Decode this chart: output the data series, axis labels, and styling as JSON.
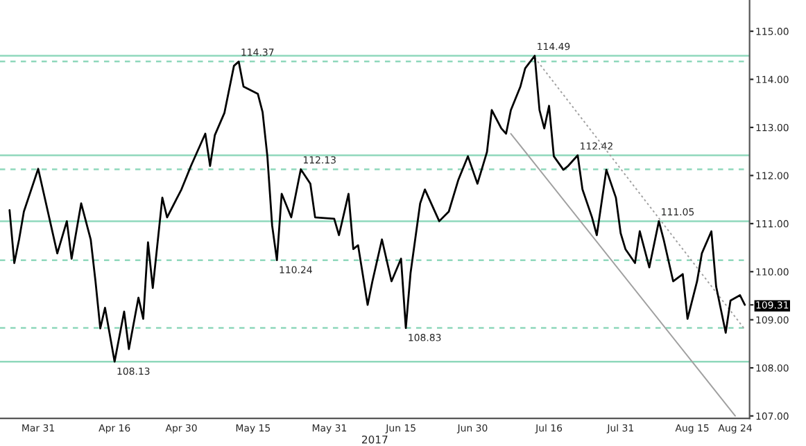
{
  "chart_data": {
    "type": "line",
    "xlabel": "2017",
    "series": [
      {
        "color": "#000000",
        "line_style": "solid",
        "x": [
          "2017-03-25",
          "2017-03-26",
          "2017-03-27",
          "2017-03-28",
          "2017-03-31",
          "2017-04-04",
          "2017-04-06",
          "2017-04-07",
          "2017-04-09",
          "2017-04-11",
          "2017-04-12",
          "2017-04-13",
          "2017-04-14",
          "2017-04-16",
          "2017-04-18",
          "2017-04-19",
          "2017-04-21",
          "2017-04-22",
          "2017-04-23",
          "2017-04-24",
          "2017-04-26",
          "2017-04-27",
          "2017-04-30",
          "2017-05-02",
          "2017-05-05",
          "2017-05-06",
          "2017-05-07",
          "2017-05-09",
          "2017-05-11",
          "2017-05-12",
          "2017-05-13",
          "2017-05-16",
          "2017-05-17",
          "2017-05-18",
          "2017-05-19",
          "2017-05-20",
          "2017-05-21",
          "2017-05-23",
          "2017-05-25",
          "2017-05-27",
          "2017-05-28",
          "2017-06-01",
          "2017-06-02",
          "2017-06-04",
          "2017-06-05",
          "2017-06-06",
          "2017-06-08",
          "2017-06-09",
          "2017-06-11",
          "2017-06-13",
          "2017-06-15",
          "2017-06-16",
          "2017-06-17",
          "2017-06-19",
          "2017-06-20",
          "2017-06-23",
          "2017-06-25",
          "2017-06-27",
          "2017-06-29",
          "2017-07-01",
          "2017-07-03",
          "2017-07-04",
          "2017-07-06",
          "2017-07-07",
          "2017-07-08",
          "2017-07-10",
          "2017-07-11",
          "2017-07-13",
          "2017-07-14",
          "2017-07-15",
          "2017-07-16",
          "2017-07-17",
          "2017-07-19",
          "2017-07-20",
          "2017-07-22",
          "2017-07-23",
          "2017-07-25",
          "2017-07-26",
          "2017-07-28",
          "2017-07-30",
          "2017-07-31",
          "2017-08-01",
          "2017-08-03",
          "2017-08-04",
          "2017-08-06",
          "2017-08-08",
          "2017-08-09",
          "2017-08-11",
          "2017-08-13",
          "2017-08-14",
          "2017-08-16",
          "2017-08-17",
          "2017-08-19",
          "2017-08-20",
          "2017-08-22",
          "2017-08-23",
          "2017-08-25",
          "2017-08-26"
        ],
        "values": [
          111.28,
          110.18,
          110.67,
          111.25,
          112.14,
          110.38,
          111.05,
          110.27,
          111.42,
          110.67,
          109.8,
          108.82,
          109.25,
          108.13,
          109.17,
          108.39,
          109.46,
          109.02,
          110.61,
          109.66,
          111.54,
          111.13,
          111.71,
          112.2,
          112.87,
          112.2,
          112.84,
          113.3,
          114.28,
          114.37,
          113.85,
          113.7,
          113.32,
          112.4,
          110.96,
          110.24,
          111.62,
          111.13,
          112.13,
          111.83,
          111.13,
          111.1,
          110.76,
          111.62,
          110.47,
          110.55,
          109.31,
          109.8,
          110.67,
          109.8,
          110.27,
          108.83,
          109.98,
          111.42,
          111.71,
          111.05,
          111.25,
          111.91,
          112.4,
          111.83,
          112.49,
          113.36,
          112.98,
          112.87,
          113.36,
          113.85,
          114.23,
          114.49,
          113.36,
          112.98,
          113.45,
          112.4,
          112.12,
          112.2,
          112.42,
          111.71,
          111.13,
          110.76,
          112.12,
          111.54,
          110.8,
          110.47,
          110.18,
          110.84,
          110.09,
          111.05,
          110.67,
          109.8,
          109.95,
          109.02,
          109.8,
          110.38,
          110.84,
          109.69,
          108.73,
          109.4,
          109.51,
          109.31
        ]
      },
      {
        "color": "#a0a0a0",
        "line_style": "solid",
        "x": [
          "2017-07-08",
          "2017-08-24"
        ],
        "values": [
          112.87,
          107.0
        ]
      },
      {
        "color": "#a0a0a0",
        "line_style": "dotted",
        "x": [
          "2017-07-13",
          "2017-08-26"
        ],
        "values": [
          114.45,
          108.8
        ]
      }
    ],
    "xlim": [
      "2017-03-23",
      "2017-08-27"
    ],
    "xticks": [
      {
        "value": "2017-03-31",
        "label": "Mar 31"
      },
      {
        "value": "2017-04-16",
        "label": "Apr 16"
      },
      {
        "value": "2017-04-30",
        "label": "Apr 30"
      },
      {
        "value": "2017-05-15",
        "label": "May 15"
      },
      {
        "value": "2017-05-31",
        "label": "May 31"
      },
      {
        "value": "2017-06-15",
        "label": "Jun 15"
      },
      {
        "value": "2017-06-30",
        "label": "Jun 30"
      },
      {
        "value": "2017-07-16",
        "label": "Jul 16"
      },
      {
        "value": "2017-07-31",
        "label": "Jul 31"
      },
      {
        "value": "2017-08-15",
        "label": "Aug 15"
      },
      {
        "value": "2017-08-24",
        "label": "Aug 24"
      }
    ],
    "ylim": [
      106.95,
      115.65
    ],
    "yticks": [
      {
        "value": 107,
        "label": "107.00"
      },
      {
        "value": 108,
        "label": "108.00"
      },
      {
        "value": 109,
        "label": "109.00"
      },
      {
        "value": 110,
        "label": "110.00"
      },
      {
        "value": 111,
        "label": "111.00"
      },
      {
        "value": 112,
        "label": "112.00"
      },
      {
        "value": 113,
        "label": "113.00"
      },
      {
        "value": 114,
        "label": "114.00"
      },
      {
        "value": 115,
        "label": "115.00"
      },
      {
        "value": 109.31,
        "label": "109.31"
      }
    ],
    "ref_lines": [
      {
        "axis": "y",
        "value": 114.49,
        "color": "#8fd8bc",
        "line_style": "solid"
      },
      {
        "axis": "y",
        "value": 114.37,
        "color": "#8fd8bc",
        "line_style": "dashed"
      },
      {
        "axis": "y",
        "value": 112.42,
        "color": "#8fd8bc",
        "line_style": "solid"
      },
      {
        "axis": "y",
        "value": 112.13,
        "color": "#8fd8bc",
        "line_style": "dashed"
      },
      {
        "axis": "y",
        "value": 111.05,
        "color": "#8fd8bc",
        "line_style": "solid"
      },
      {
        "axis": "y",
        "value": 110.24,
        "color": "#8fd8bc",
        "line_style": "dashed"
      },
      {
        "axis": "y",
        "value": 108.83,
        "color": "#8fd8bc",
        "line_style": "dashed"
      },
      {
        "axis": "y",
        "value": 108.13,
        "color": "#8fd8bc",
        "line_style": "solid"
      }
    ],
    "annotations": [
      {
        "text": "114.37",
        "x": "2017-05-12",
        "y": 114.37
      },
      {
        "text": "114.49",
        "x": "2017-07-13",
        "y": 114.49
      },
      {
        "text": "112.42",
        "x": "2017-07-22",
        "y": 112.42
      },
      {
        "text": "112.13",
        "x": "2017-05-25",
        "y": 112.13
      },
      {
        "text": "111.05",
        "x": "2017-08-08",
        "y": 111.05
      },
      {
        "text": "110.24",
        "x": "2017-05-20",
        "y": 110.24
      },
      {
        "text": "108.83",
        "x": "2017-06-16",
        "y": 108.83
      },
      {
        "text": "108.13",
        "x": "2017-04-16",
        "y": 108.13
      }
    ],
    "grid": false,
    "legend": false
  }
}
